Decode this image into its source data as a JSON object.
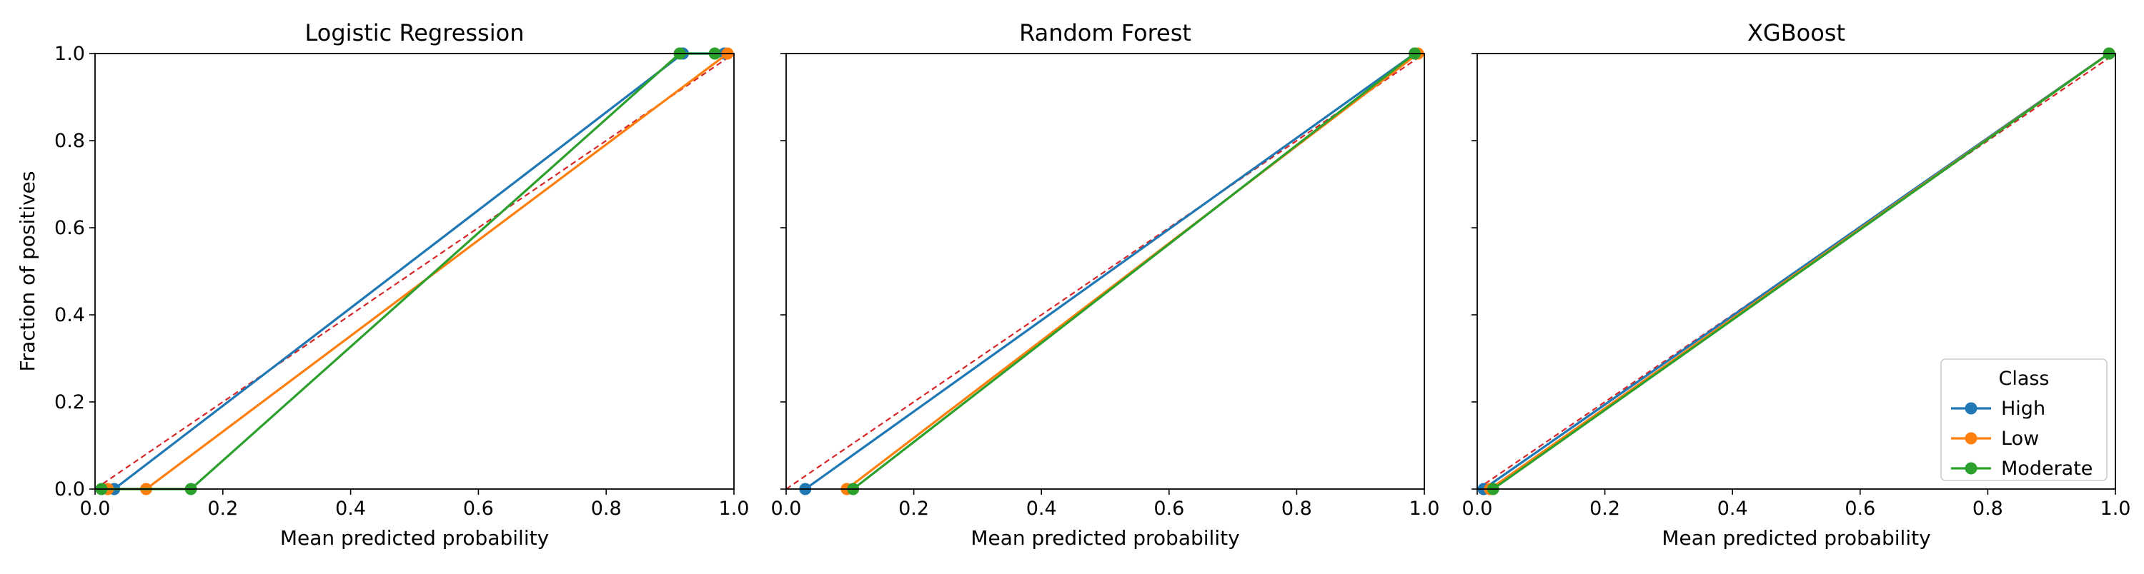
{
  "chart_data": [
    {
      "type": "line",
      "title": "Logistic Regression",
      "xlabel": "Mean predicted probability",
      "ylabel": "Fraction of positives",
      "xlim": [
        0,
        1
      ],
      "ylim": [
        0,
        1
      ],
      "xticks": [
        "0.0",
        "0.2",
        "0.4",
        "0.6",
        "0.8",
        "1.0"
      ],
      "yticks": [
        "0.0",
        "0.2",
        "0.4",
        "0.6",
        "0.8",
        "1.0"
      ],
      "reference_line": {
        "x": [
          0,
          1
        ],
        "y": [
          0,
          1
        ],
        "color": "#d62728",
        "style": "dashed"
      },
      "series": [
        {
          "name": "High",
          "color": "#1f77b4",
          "x": [
            0.03,
            0.92,
            0.985
          ],
          "y": [
            0,
            1,
            1
          ]
        },
        {
          "name": "Low",
          "color": "#ff7f0e",
          "x": [
            0.02,
            0.08,
            0.99
          ],
          "y": [
            0,
            0,
            1
          ]
        },
        {
          "name": "Moderate",
          "color": "#2ca02c",
          "x": [
            0.01,
            0.15,
            0.915,
            0.97
          ],
          "y": [
            0,
            0,
            1,
            1
          ]
        }
      ]
    },
    {
      "type": "line",
      "title": "Random Forest",
      "xlabel": "Mean predicted probability",
      "ylabel": "",
      "xlim": [
        0,
        1
      ],
      "ylim": [
        0,
        1
      ],
      "xticks": [
        "0.0",
        "0.2",
        "0.4",
        "0.6",
        "0.8",
        "1.0"
      ],
      "yticks": [
        "",
        "",
        "",
        "",
        "",
        ""
      ],
      "reference_line": {
        "x": [
          0,
          1
        ],
        "y": [
          0,
          1
        ],
        "color": "#d62728",
        "style": "dashed"
      },
      "series": [
        {
          "name": "High",
          "color": "#1f77b4",
          "x": [
            0.03,
            0.985
          ],
          "y": [
            0,
            1
          ]
        },
        {
          "name": "Low",
          "color": "#ff7f0e",
          "x": [
            0.095,
            0.99
          ],
          "y": [
            0,
            1
          ]
        },
        {
          "name": "Moderate",
          "color": "#2ca02c",
          "x": [
            0.105,
            0.985
          ],
          "y": [
            0,
            1
          ]
        }
      ]
    },
    {
      "type": "line",
      "title": "XGBoost",
      "xlabel": "Mean predicted probability",
      "ylabel": "",
      "xlim": [
        0,
        1
      ],
      "ylim": [
        0,
        1
      ],
      "xticks": [
        "0.0",
        "0.2",
        "0.4",
        "0.6",
        "0.8",
        "1.0"
      ],
      "yticks": [
        "",
        "",
        "",
        "",
        "",
        ""
      ],
      "reference_line": {
        "x": [
          0,
          1
        ],
        "y": [
          0,
          1
        ],
        "color": "#d62728",
        "style": "dashed"
      },
      "legend": {
        "title": "Class",
        "placement": "lower-right",
        "entries": [
          "High",
          "Low",
          "Moderate"
        ]
      },
      "series": [
        {
          "name": "High",
          "color": "#1f77b4",
          "x": [
            0.01,
            0.99
          ],
          "y": [
            0,
            1
          ]
        },
        {
          "name": "Low",
          "color": "#ff7f0e",
          "x": [
            0.02,
            0.99
          ],
          "y": [
            0,
            1
          ]
        },
        {
          "name": "Moderate",
          "color": "#2ca02c",
          "x": [
            0.025,
            0.99
          ],
          "y": [
            0,
            1
          ]
        }
      ]
    }
  ]
}
